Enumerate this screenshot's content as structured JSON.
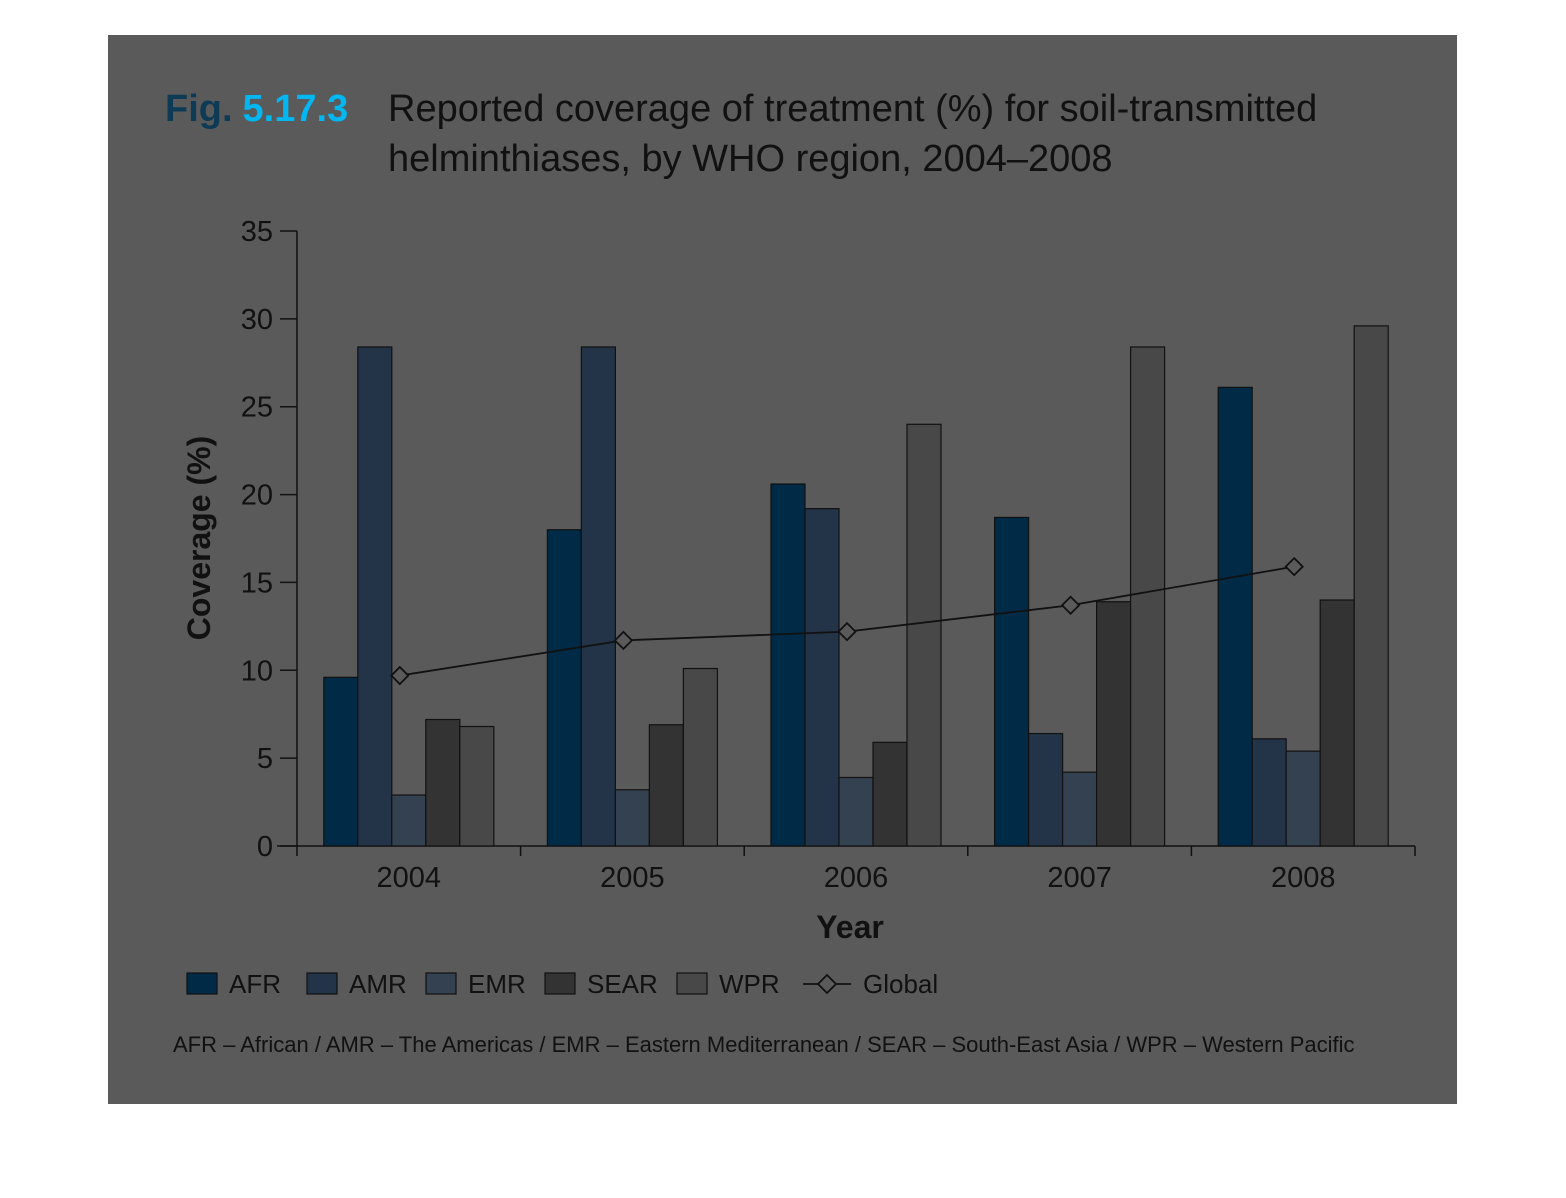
{
  "figure": {
    "fig_prefix": "Fig.",
    "fig_number": "5.17.3",
    "title_line1": "Reported coverage of treatment (%) for soil-transmitted",
    "title_line2": "helminthiases, by WHO region, 2004–2008",
    "note": "AFR – African / AMR – The Americas / EMR – Eastern Mediterranean / SEAR – South-East Asia / WPR – Western Pacific"
  },
  "colors": {
    "panel": "#5a5a5a",
    "fig_prefix": "#0d3a55",
    "fig_number": "#00b7f1",
    "AFR": "#002a45",
    "AMR": "#233448",
    "EMR": "#344150",
    "SEAR": "#333333",
    "WPR": "#484848",
    "line": "#111111"
  },
  "chart_data": {
    "type": "bar",
    "title": "Reported coverage of treatment (%) for soil-transmitted helminthiases, by WHO region, 2004–2008",
    "xlabel": "Year",
    "ylabel": "Coverage (%)",
    "ylim": [
      0,
      35
    ],
    "yticks": [
      0,
      5,
      10,
      15,
      20,
      25,
      30,
      35
    ],
    "categories": [
      "2004",
      "2005",
      "2006",
      "2007",
      "2008"
    ],
    "series": [
      {
        "name": "AFR",
        "values": [
          9.6,
          18.0,
          20.6,
          18.7,
          26.1
        ]
      },
      {
        "name": "AMR",
        "values": [
          28.4,
          28.4,
          19.2,
          6.4,
          6.1
        ]
      },
      {
        "name": "EMR",
        "values": [
          2.9,
          3.2,
          3.9,
          4.2,
          5.4
        ]
      },
      {
        "name": "SEAR",
        "values": [
          7.2,
          6.9,
          5.9,
          13.9,
          14.0
        ]
      },
      {
        "name": "WPR",
        "values": [
          6.8,
          10.1,
          24.0,
          28.4,
          29.6
        ]
      }
    ],
    "line_series": {
      "name": "Global",
      "values": [
        9.7,
        11.7,
        12.2,
        13.7,
        15.9
      ]
    },
    "legend": [
      "AFR",
      "AMR",
      "EMR",
      "SEAR",
      "WPR",
      "Global"
    ],
    "legend_position": "bottom",
    "grid": false
  }
}
